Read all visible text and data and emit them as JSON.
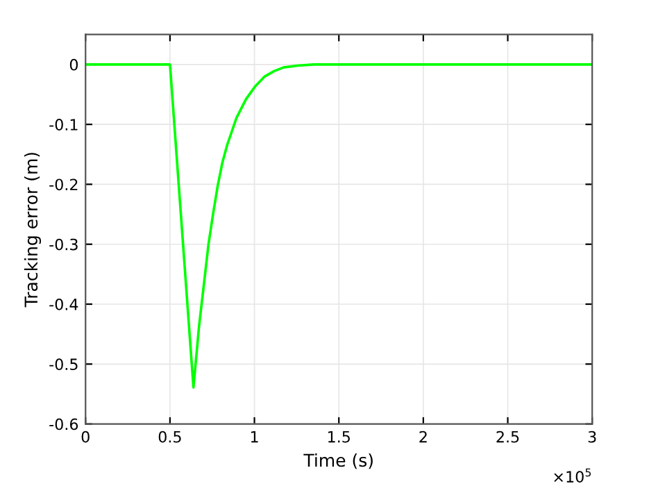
{
  "chart_data": {
    "type": "line",
    "xlabel": "Time (s)",
    "ylabel": "Tracking error (m)",
    "annotations": [
      "×10$^{5}$"
    ],
    "series": [
      {
        "color": "#00ff00",
        "x": [
          0,
          0.5,
          0.639,
          0.672,
          0.7,
          0.728,
          0.756,
          0.783,
          0.81,
          0.839,
          0.894,
          0.95,
          1.006,
          1.061,
          1.117,
          1.172,
          1.256,
          1.35,
          1.5,
          2.0,
          2.5,
          3.0
        ],
        "values": [
          0,
          0,
          -0.539,
          -0.437,
          -0.369,
          -0.3,
          -0.248,
          -0.202,
          -0.164,
          -0.134,
          -0.089,
          -0.058,
          -0.036,
          -0.02,
          -0.011,
          -0.005,
          -0.002,
          0,
          0,
          0,
          0,
          0
        ]
      }
    ],
    "xlim": [
      0,
      3
    ],
    "xticks": [
      0,
      0.5,
      1,
      1.5,
      2,
      2.5,
      3
    ],
    "ylim": [
      -0.6,
      0.05
    ],
    "yticks": [
      0,
      -0.1,
      -0.2,
      -0.3,
      -0.4,
      -0.5,
      -0.6
    ],
    "grid": true
  }
}
